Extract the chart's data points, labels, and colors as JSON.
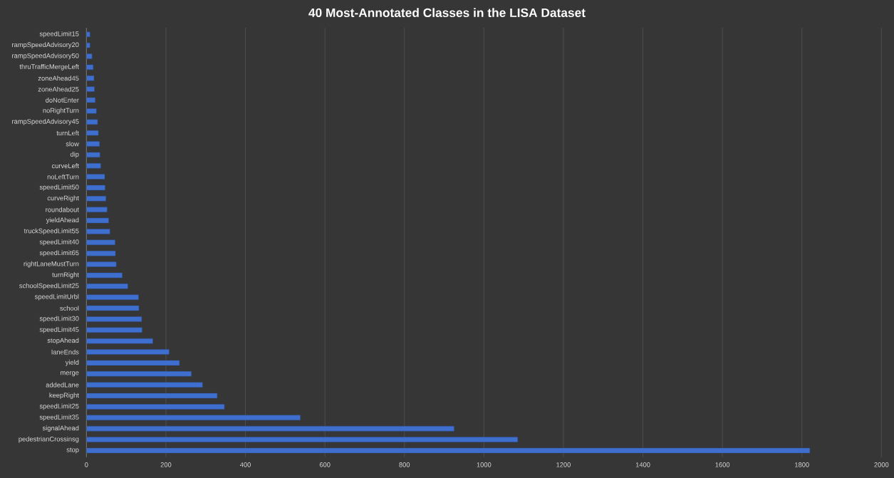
{
  "chart_data": {
    "type": "bar",
    "orientation": "horizontal",
    "title": "40 Most-Annotated Classes in the LISA Dataset",
    "categories": [
      "speedLimit15",
      "rampSpeedAdvisory20",
      "rampSpeedAdvisory50",
      "thruTrafficMergeLeft",
      "zoneAhead45",
      "zoneAhead25",
      "doNotEnter",
      "noRightTurn",
      "rampSpeedAdvisory45",
      "turnLeft",
      "slow",
      "dip",
      "curveLeft",
      "noLeftTurn",
      "speedLimit50",
      "curveRight",
      "roundabout",
      "yieldAhead",
      "truckSpeedLimit55",
      "speedLimit40",
      "speedLimit65",
      "rightLaneMustTurn",
      "turnRight",
      "schoolSpeedLimit25",
      "speedLimitUrbl",
      "school",
      "speedLimit30",
      "speedLimit45",
      "stopAhead",
      "laneEnds",
      "yield",
      "merge",
      "addedLane",
      "keepRight",
      "speedLimit25",
      "speedLimit35",
      "signalAhead",
      "pedestrianCrossinsg",
      "stop"
    ],
    "values": [
      9,
      9,
      14,
      17,
      19,
      20,
      22,
      25,
      28,
      30,
      33,
      34,
      36,
      46,
      47,
      49,
      52,
      56,
      59,
      72,
      73,
      75,
      90,
      104,
      131,
      132,
      139,
      140,
      167,
      208,
      234,
      264,
      292,
      329,
      347,
      538,
      925,
      1085,
      1820
    ],
    "color": "#3f6fce",
    "xlim": [
      0,
      2000
    ],
    "xticks": [
      0,
      200,
      400,
      600,
      800,
      1000,
      1200,
      1400,
      1600,
      1800,
      2000
    ],
    "grid": "x"
  }
}
